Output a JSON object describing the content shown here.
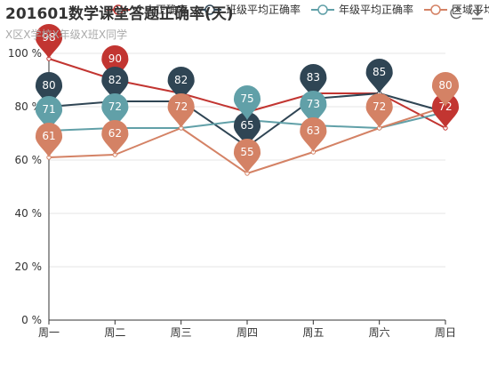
{
  "chart_data": {
    "type": "line",
    "title": "201601数学课堂答题正确率(天)",
    "subtitle": "X区X学校X年级X班X同学",
    "categories": [
      "周一",
      "周二",
      "周三",
      "周四",
      "周五",
      "周六",
      "周日"
    ],
    "ylim": [
      0,
      100
    ],
    "ytick_values": [
      0,
      20,
      40,
      60,
      80,
      100
    ],
    "ytick_suffix": " %",
    "grid": true,
    "legend_position": "top-center",
    "series": [
      {
        "name": "个人正确率",
        "color": "#c23531",
        "values": [
          98,
          90,
          85,
          78,
          85,
          85,
          72
        ],
        "pin_labels": [
          98,
          90,
          null,
          null,
          null,
          null,
          72
        ]
      },
      {
        "name": "班级平均正确率",
        "color": "#2f4554",
        "values": [
          80,
          82,
          82,
          65,
          83,
          85,
          78
        ],
        "pin_labels": [
          80,
          82,
          82,
          65,
          83,
          85,
          null
        ]
      },
      {
        "name": "年级平均正确率",
        "color": "#61a0a8",
        "values": [
          71,
          72,
          72,
          75,
          73,
          72,
          78
        ],
        "pin_labels": [
          71,
          72,
          null,
          75,
          73,
          null,
          null
        ]
      },
      {
        "name": "区域平均正确率",
        "color": "#d48265",
        "values": [
          61,
          62,
          72,
          55,
          63,
          72,
          80
        ],
        "pin_labels": [
          61,
          62,
          72,
          55,
          63,
          72,
          80
        ]
      }
    ],
    "toolbox_icons": [
      "refresh-icon",
      "download-icon"
    ]
  }
}
